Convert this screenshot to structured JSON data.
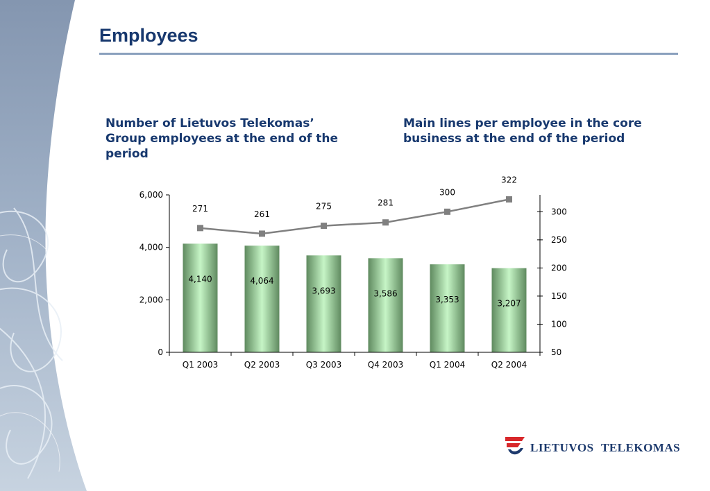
{
  "page": {
    "title": "Employees"
  },
  "subtitles": {
    "left": "Number of Lietuvos Telekomas’ Group employees at the end of the period",
    "right": "Main lines per employee in the core business at the end of the period"
  },
  "logo": {
    "word1": "LIETUVOS",
    "word2": "TELEKOMAS"
  },
  "colors": {
    "title": "#17386e",
    "bar": "#a8e6a8",
    "line": "#808080"
  },
  "chart_data": {
    "type": "bar",
    "categories": [
      "Q1 2003",
      "Q2 2003",
      "Q3 2003",
      "Q4 2003",
      "Q1 2004",
      "Q2 2004"
    ],
    "series": [
      {
        "values": [
          4140,
          4064,
          3693,
          3586,
          3353,
          3207
        ],
        "axis": "left",
        "type": "bar"
      },
      {
        "values": [
          271,
          261,
          275,
          281,
          300,
          322
        ],
        "axis": "right",
        "type": "line"
      }
    ],
    "bar_labels": [
      "4,140",
      "4,064",
      "3,693",
      "3,586",
      "3,353",
      "3,207"
    ],
    "line_labels": [
      "271",
      "261",
      "275",
      "281",
      "300",
      "322"
    ],
    "y_left": {
      "ylim": [
        0,
        6000
      ],
      "ticks": [
        0,
        2000,
        4000,
        6000
      ],
      "tick_labels": [
        "0",
        "2,000",
        "4,000",
        "6,000"
      ]
    },
    "y_right": {
      "ylim": [
        50,
        330
      ],
      "ticks": [
        50,
        100,
        150,
        200,
        250,
        300
      ],
      "tick_labels": [
        "50",
        "100",
        "150",
        "200",
        "250",
        "300"
      ]
    },
    "grid": false,
    "legend": "none"
  }
}
